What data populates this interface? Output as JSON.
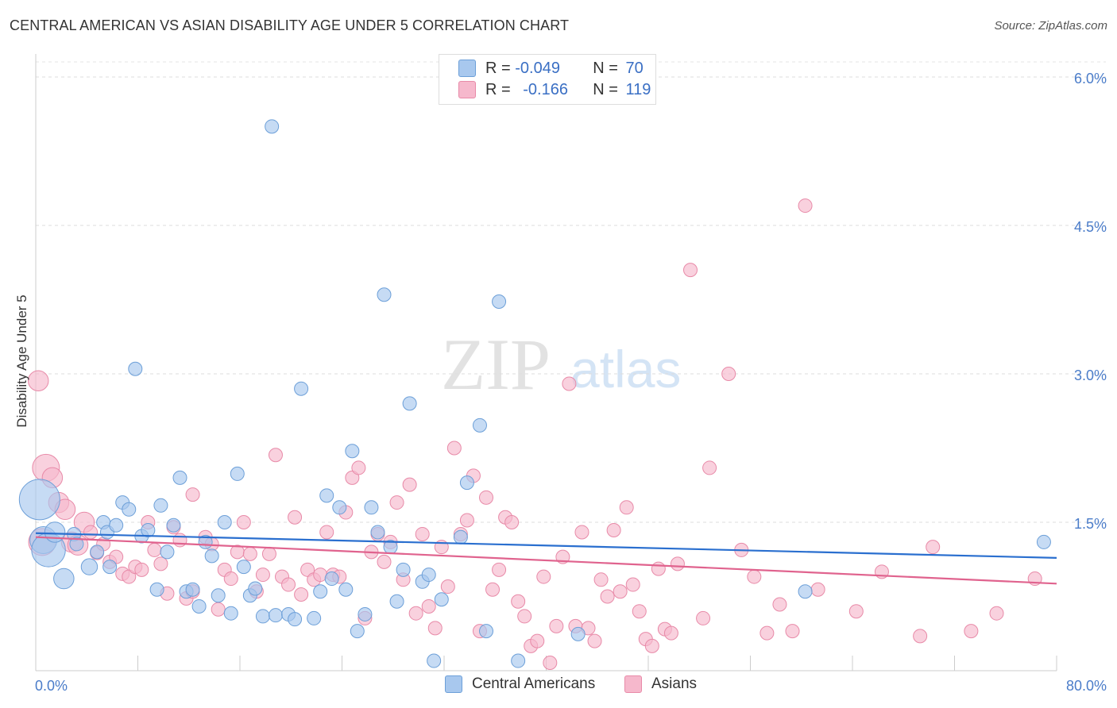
{
  "title": "CENTRAL AMERICAN VS ASIAN DISABILITY AGE UNDER 5 CORRELATION CHART",
  "source": "Source: ZipAtlas.com",
  "watermark": {
    "zip": "ZIP",
    "atlas": "atlas"
  },
  "legend": {
    "rows": [
      {
        "r_label": "R = ",
        "r_value": "-0.049",
        "n_label": "N = ",
        "n_value": "70",
        "color": "#a8c8ee"
      },
      {
        "r_label": "R = ",
        "r_value": "-0.166",
        "n_label": "N = ",
        "n_value": "119",
        "color": "#f6b8cc"
      }
    ]
  },
  "colors": {
    "blue_fill": "#a8c8ee",
    "blue_stroke": "#6c9fd8",
    "blue_line": "#2a6fcf",
    "pink_fill": "#f6b8cc",
    "pink_stroke": "#e88aa8",
    "pink_line": "#e0638e",
    "tick_label": "#4a7cc9"
  },
  "chart_data": {
    "type": "scatter",
    "title": "CENTRAL AMERICAN VS ASIAN DISABILITY AGE UNDER 5 CORRELATION CHART",
    "xlabel": "",
    "ylabel": "Disability Age Under 5",
    "xlim": [
      0,
      80
    ],
    "ylim": [
      0,
      6.2
    ],
    "x_tick_labels": [
      "0.0%",
      "80.0%"
    ],
    "y_ticks": [
      1.5,
      3.0,
      4.5,
      6.0
    ],
    "y_tick_labels": [
      "1.5%",
      "3.0%",
      "4.5%",
      "6.0%"
    ],
    "grid": "horizontal dashed",
    "legend_position": "top-center",
    "series": [
      {
        "name": "Central Americans",
        "r": -0.049,
        "n": 70,
        "trend": {
          "x0": 0,
          "y0": 1.39,
          "x1": 80,
          "y1": 1.14
        },
        "points": [
          [
            0.3,
            1.73,
            3
          ],
          [
            0.6,
            1.32,
            2
          ],
          [
            1.0,
            1.22,
            2.5
          ],
          [
            1.5,
            1.4,
            1.5
          ],
          [
            2.2,
            0.93,
            1.5
          ],
          [
            3.0,
            1.38,
            1
          ],
          [
            3.2,
            1.28,
            1
          ],
          [
            4.2,
            1.05,
            1.2
          ],
          [
            4.8,
            1.2,
            1
          ],
          [
            5.3,
            1.5,
            1
          ],
          [
            5.6,
            1.4,
            1
          ],
          [
            5.8,
            1.05,
            1
          ],
          [
            6.3,
            1.47,
            1
          ],
          [
            6.8,
            1.7,
            1
          ],
          [
            7.3,
            1.63,
            1
          ],
          [
            7.8,
            3.05,
            1
          ],
          [
            8.3,
            1.36,
            1
          ],
          [
            8.8,
            1.42,
            1
          ],
          [
            9.5,
            0.82,
            1
          ],
          [
            9.8,
            1.67,
            1
          ],
          [
            10.3,
            1.2,
            1
          ],
          [
            10.8,
            1.47,
            1
          ],
          [
            11.3,
            1.95,
            1
          ],
          [
            11.8,
            0.8,
            1
          ],
          [
            12.3,
            0.82,
            1
          ],
          [
            12.8,
            0.65,
            1
          ],
          [
            13.3,
            1.3,
            1
          ],
          [
            13.8,
            1.16,
            1
          ],
          [
            14.3,
            0.76,
            1
          ],
          [
            14.8,
            1.5,
            1
          ],
          [
            15.3,
            0.58,
            1
          ],
          [
            15.8,
            1.99,
            1
          ],
          [
            16.3,
            1.05,
            1
          ],
          [
            16.8,
            0.76,
            1
          ],
          [
            17.2,
            0.83,
            1
          ],
          [
            17.8,
            0.55,
            1
          ],
          [
            18.5,
            5.5,
            1
          ],
          [
            18.8,
            0.56,
            1
          ],
          [
            19.8,
            0.57,
            1
          ],
          [
            20.3,
            0.52,
            1
          ],
          [
            20.8,
            2.85,
            1
          ],
          [
            21.8,
            0.53,
            1
          ],
          [
            22.3,
            0.8,
            1
          ],
          [
            22.8,
            1.77,
            1
          ],
          [
            23.2,
            0.93,
            1
          ],
          [
            23.8,
            1.65,
            1
          ],
          [
            24.3,
            0.82,
            1
          ],
          [
            24.8,
            2.22,
            1
          ],
          [
            25.2,
            0.4,
            1
          ],
          [
            25.8,
            0.57,
            1
          ],
          [
            26.3,
            1.65,
            1
          ],
          [
            26.8,
            1.4,
            1
          ],
          [
            27.3,
            3.8,
            1
          ],
          [
            27.8,
            1.25,
            1
          ],
          [
            28.3,
            0.7,
            1
          ],
          [
            28.8,
            1.02,
            1
          ],
          [
            29.3,
            2.7,
            1
          ],
          [
            30.3,
            0.9,
            1
          ],
          [
            30.8,
            0.97,
            1
          ],
          [
            31.2,
            0.1,
            1
          ],
          [
            31.8,
            0.72,
            1
          ],
          [
            33.3,
            1.35,
            1
          ],
          [
            33.8,
            1.9,
            1
          ],
          [
            34.8,
            2.48,
            1
          ],
          [
            35.3,
            0.4,
            1
          ],
          [
            36.3,
            3.73,
            1
          ],
          [
            37.8,
            0.1,
            1
          ],
          [
            42.5,
            0.37,
            1
          ],
          [
            60.3,
            0.8,
            1
          ],
          [
            79.0,
            1.3,
            1
          ]
        ]
      },
      {
        "name": "Asians",
        "r": -0.166,
        "n": 119,
        "trend": {
          "x0": 0,
          "y0": 1.35,
          "x1": 80,
          "y1": 0.88
        },
        "points": [
          [
            0.2,
            2.93,
            1.5
          ],
          [
            0.5,
            1.3,
            2
          ],
          [
            0.8,
            2.05,
            2
          ],
          [
            1.3,
            1.95,
            1.5
          ],
          [
            1.8,
            1.7,
            1.5
          ],
          [
            2.3,
            1.63,
            1.5
          ],
          [
            2.8,
            1.3,
            1.5
          ],
          [
            3.3,
            1.27,
            1.5
          ],
          [
            3.8,
            1.5,
            1.5
          ],
          [
            4.3,
            1.4,
            1
          ],
          [
            4.8,
            1.19,
            1
          ],
          [
            5.3,
            1.28,
            1
          ],
          [
            5.8,
            1.1,
            1
          ],
          [
            6.3,
            1.15,
            1
          ],
          [
            6.8,
            0.98,
            1
          ],
          [
            7.3,
            0.95,
            1
          ],
          [
            7.8,
            1.05,
            1
          ],
          [
            8.3,
            1.02,
            1
          ],
          [
            8.8,
            1.5,
            1
          ],
          [
            9.3,
            1.22,
            1
          ],
          [
            9.8,
            1.08,
            1
          ],
          [
            10.3,
            0.78,
            1
          ],
          [
            10.8,
            1.45,
            1
          ],
          [
            11.3,
            1.32,
            1
          ],
          [
            11.8,
            0.73,
            1
          ],
          [
            12.3,
            0.8,
            1
          ],
          [
            12.3,
            1.78,
            1
          ],
          [
            13.3,
            1.35,
            1
          ],
          [
            13.8,
            1.28,
            1
          ],
          [
            14.3,
            0.62,
            1
          ],
          [
            14.8,
            1.02,
            1
          ],
          [
            15.3,
            0.93,
            1
          ],
          [
            15.8,
            1.2,
            1
          ],
          [
            16.3,
            1.5,
            1
          ],
          [
            16.8,
            1.18,
            1
          ],
          [
            17.3,
            0.8,
            1
          ],
          [
            17.8,
            0.97,
            1
          ],
          [
            18.3,
            1.18,
            1
          ],
          [
            18.8,
            2.18,
            1
          ],
          [
            19.3,
            0.95,
            1
          ],
          [
            19.8,
            0.87,
            1
          ],
          [
            20.3,
            1.55,
            1
          ],
          [
            20.8,
            0.77,
            1
          ],
          [
            21.3,
            1.02,
            1
          ],
          [
            21.8,
            0.92,
            1
          ],
          [
            22.3,
            0.97,
            1
          ],
          [
            22.8,
            1.4,
            1
          ],
          [
            23.3,
            0.97,
            1
          ],
          [
            23.8,
            0.95,
            1
          ],
          [
            24.3,
            1.6,
            1
          ],
          [
            24.8,
            1.95,
            1
          ],
          [
            25.3,
            2.05,
            1
          ],
          [
            25.8,
            0.53,
            1
          ],
          [
            26.3,
            1.2,
            1
          ],
          [
            26.8,
            1.38,
            1
          ],
          [
            27.3,
            1.1,
            1
          ],
          [
            27.8,
            1.3,
            1
          ],
          [
            28.3,
            1.7,
            1
          ],
          [
            28.8,
            0.92,
            1
          ],
          [
            29.3,
            1.88,
            1
          ],
          [
            29.8,
            0.58,
            1
          ],
          [
            30.3,
            1.38,
            1
          ],
          [
            30.8,
            0.65,
            1
          ],
          [
            31.3,
            0.43,
            1
          ],
          [
            31.8,
            1.25,
            1
          ],
          [
            32.3,
            0.85,
            1
          ],
          [
            32.8,
            2.25,
            1
          ],
          [
            33.3,
            1.38,
            1
          ],
          [
            33.8,
            1.52,
            1
          ],
          [
            34.3,
            1.97,
            1
          ],
          [
            34.8,
            0.4,
            1
          ],
          [
            35.3,
            1.75,
            1
          ],
          [
            35.8,
            0.82,
            1
          ],
          [
            36.3,
            1.02,
            1
          ],
          [
            36.8,
            1.55,
            1
          ],
          [
            37.3,
            1.5,
            1
          ],
          [
            37.8,
            0.7,
            1
          ],
          [
            38.3,
            0.55,
            1
          ],
          [
            38.8,
            0.25,
            1
          ],
          [
            39.3,
            0.3,
            1
          ],
          [
            39.8,
            0.95,
            1
          ],
          [
            40.3,
            0.08,
            1
          ],
          [
            40.8,
            0.45,
            1
          ],
          [
            41.3,
            1.15,
            1
          ],
          [
            41.8,
            2.9,
            1
          ],
          [
            42.3,
            0.45,
            1
          ],
          [
            42.8,
            1.4,
            1
          ],
          [
            43.3,
            0.43,
            1
          ],
          [
            43.8,
            0.3,
            1
          ],
          [
            44.3,
            0.92,
            1
          ],
          [
            44.8,
            0.75,
            1
          ],
          [
            45.3,
            1.42,
            1
          ],
          [
            45.8,
            0.8,
            1
          ],
          [
            46.3,
            1.65,
            1
          ],
          [
            46.8,
            0.87,
            1
          ],
          [
            47.3,
            0.6,
            1
          ],
          [
            47.8,
            0.32,
            1
          ],
          [
            48.3,
            0.25,
            1
          ],
          [
            48.8,
            1.03,
            1
          ],
          [
            49.3,
            0.42,
            1
          ],
          [
            49.8,
            0.38,
            1
          ],
          [
            50.3,
            1.08,
            1
          ],
          [
            51.3,
            4.05,
            1
          ],
          [
            52.3,
            0.53,
            1
          ],
          [
            52.8,
            2.05,
            1
          ],
          [
            54.3,
            3.0,
            1
          ],
          [
            55.3,
            1.22,
            1
          ],
          [
            56.3,
            0.95,
            1
          ],
          [
            57.3,
            0.38,
            1
          ],
          [
            58.3,
            0.67,
            1
          ],
          [
            59.3,
            0.4,
            1
          ],
          [
            60.3,
            4.7,
            1
          ],
          [
            61.3,
            0.82,
            1
          ],
          [
            64.3,
            0.6,
            1
          ],
          [
            66.3,
            1.0,
            1
          ],
          [
            69.3,
            0.35,
            1
          ],
          [
            70.3,
            1.25,
            1
          ],
          [
            73.3,
            0.4,
            1
          ],
          [
            75.3,
            0.58,
            1
          ],
          [
            78.3,
            0.93,
            1
          ]
        ]
      }
    ]
  }
}
